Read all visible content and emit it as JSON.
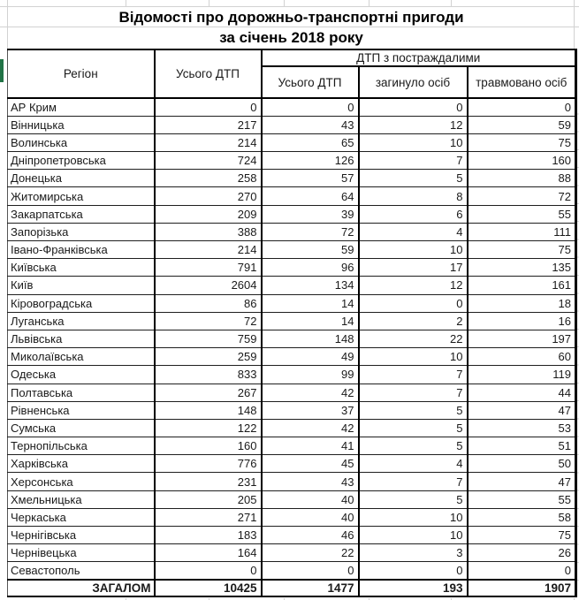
{
  "app": {
    "accent_green": "#217346",
    "grid_color": "#d2d2d2"
  },
  "title": {
    "line1": "Відомості про дорожньо-транспортні пригоди",
    "line2": "за січень 2018 року"
  },
  "table": {
    "headers": {
      "region": "Регіон",
      "total_accidents": "Усього ДТП",
      "group_with_victims": "ДТП з постраждалими",
      "sub_total_accidents": "Усього ДТП",
      "sub_killed": "загинуло осіб",
      "sub_injured": "травмовано осіб"
    },
    "rows": [
      [
        "АР Крим",
        0,
        0,
        0,
        0
      ],
      [
        "Вінницька",
        217,
        43,
        12,
        59
      ],
      [
        "Волинська",
        214,
        65,
        10,
        75
      ],
      [
        "Дніпропетровська",
        724,
        126,
        7,
        160
      ],
      [
        "Донецька",
        258,
        57,
        5,
        88
      ],
      [
        "Житомирська",
        270,
        64,
        8,
        72
      ],
      [
        "Закарпатська",
        209,
        39,
        6,
        55
      ],
      [
        "Запорізька",
        388,
        72,
        4,
        111
      ],
      [
        "Івано-Франківська",
        214,
        59,
        10,
        75
      ],
      [
        "Київська",
        791,
        96,
        17,
        135
      ],
      [
        "Київ",
        2604,
        134,
        12,
        161
      ],
      [
        "Кіровоградська",
        86,
        14,
        0,
        18
      ],
      [
        "Луганська",
        72,
        14,
        2,
        16
      ],
      [
        "Львівська",
        759,
        148,
        22,
        197
      ],
      [
        "Миколаївська",
        259,
        49,
        10,
        60
      ],
      [
        "Одеська",
        833,
        99,
        7,
        119
      ],
      [
        "Полтавська",
        267,
        42,
        7,
        44
      ],
      [
        "Рівненська",
        148,
        37,
        5,
        47
      ],
      [
        "Сумська",
        122,
        42,
        5,
        53
      ],
      [
        "Тернопільська",
        160,
        41,
        5,
        51
      ],
      [
        "Харківська",
        776,
        45,
        4,
        50
      ],
      [
        "Херсонська",
        231,
        43,
        7,
        47
      ],
      [
        "Хмельницька",
        205,
        40,
        5,
        55
      ],
      [
        "Черкаська",
        271,
        40,
        10,
        58
      ],
      [
        "Чернігівська",
        183,
        46,
        10,
        75
      ],
      [
        "Чернівецька",
        164,
        22,
        3,
        26
      ],
      [
        "Севастополь",
        0,
        0,
        0,
        0
      ]
    ],
    "total_row": [
      "ЗАГАЛОМ",
      10425,
      1477,
      193,
      1907
    ]
  }
}
